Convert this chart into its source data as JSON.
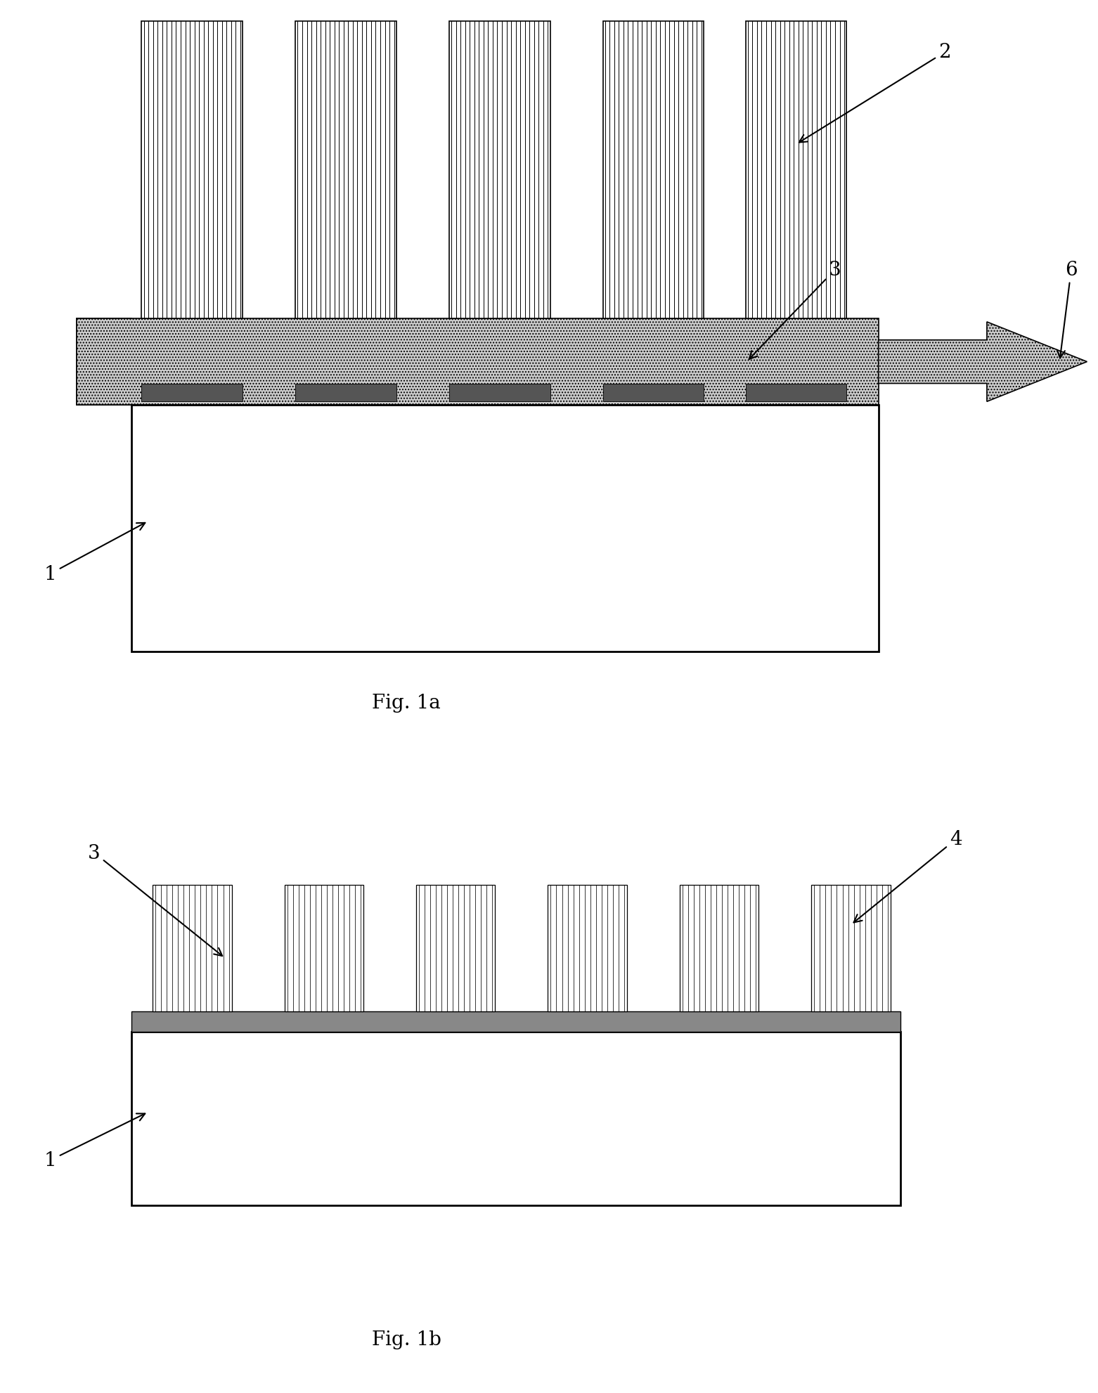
{
  "fig_width": 15.62,
  "fig_height": 19.83,
  "bg_color": "#ffffff",
  "fig1a_label": "Fig. 1a",
  "fig1b_label": "Fig. 1b",
  "label_fontsize": 20,
  "annot_fontsize": 20,
  "tube_line_color": "#000000",
  "substrate_hatch_color": "#888888",
  "box_edge_color": "#000000"
}
